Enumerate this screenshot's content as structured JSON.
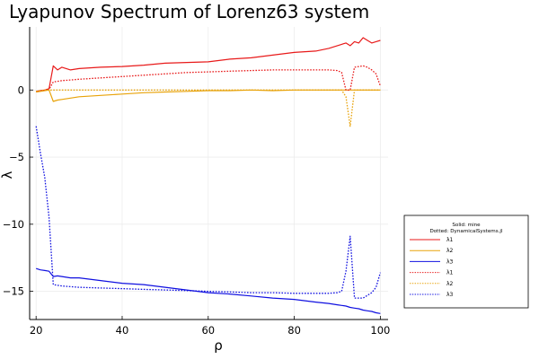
{
  "chart_data": {
    "type": "line",
    "title": "Lyapunov Spectrum of Lorenz63 system",
    "xlabel": "ρ",
    "ylabel": "λ",
    "xlim": [
      18.5,
      101.8
    ],
    "ylim": [
      -17.1,
      4.7
    ],
    "xticks": [
      20,
      40,
      60,
      80,
      100
    ],
    "yticks": [
      0,
      -5,
      -10,
      -15
    ],
    "ytick_labels": [
      "0",
      "−5",
      "−10",
      "−15"
    ],
    "grid": true,
    "legend": {
      "placement": "outer-right",
      "header_lines": [
        "Solid: mine",
        "Dotted: DynamicalSystems.jl"
      ]
    },
    "x": [
      20,
      21,
      22,
      23,
      24,
      25,
      26,
      28,
      30,
      35,
      40,
      45,
      50,
      55,
      60,
      65,
      70,
      75,
      80,
      85,
      88,
      90,
      91,
      92,
      93,
      94,
      95,
      96,
      97,
      98,
      99,
      100
    ],
    "series": [
      {
        "name": "λ1",
        "style": "solid",
        "color": "#e81a1a",
        "values": [
          -0.1,
          -0.05,
          0.0,
          0.1,
          1.8,
          1.5,
          1.7,
          1.5,
          1.6,
          1.7,
          1.75,
          1.85,
          2.0,
          2.05,
          2.1,
          2.3,
          2.4,
          2.6,
          2.8,
          2.9,
          3.1,
          3.3,
          3.4,
          3.5,
          3.3,
          3.6,
          3.5,
          3.9,
          3.7,
          3.5,
          3.6,
          3.7
        ]
      },
      {
        "name": "λ2",
        "style": "solid",
        "color": "#e8a30a",
        "values": [
          -0.15,
          -0.1,
          -0.05,
          0.0,
          -0.85,
          -0.75,
          -0.7,
          -0.6,
          -0.5,
          -0.4,
          -0.3,
          -0.2,
          -0.15,
          -0.1,
          -0.05,
          -0.05,
          0.0,
          -0.05,
          0.0,
          0.0,
          0.0,
          0.0,
          0.0,
          0.0,
          0.0,
          0.0,
          0.0,
          0.0,
          0.0,
          0.0,
          0.0,
          0.0
        ]
      },
      {
        "name": "λ3",
        "style": "solid",
        "color": "#1010e0",
        "values": [
          -13.3,
          -13.4,
          -13.45,
          -13.5,
          -13.9,
          -13.85,
          -13.9,
          -14.0,
          -14.0,
          -14.2,
          -14.4,
          -14.5,
          -14.7,
          -14.9,
          -15.1,
          -15.2,
          -15.35,
          -15.5,
          -15.6,
          -15.8,
          -15.9,
          -16.0,
          -16.05,
          -16.1,
          -16.2,
          -16.25,
          -16.3,
          -16.4,
          -16.45,
          -16.5,
          -16.6,
          -16.65
        ]
      },
      {
        "name": "λ1",
        "style": "dotted",
        "color": "#e81a1a",
        "values": [
          -0.1,
          -0.05,
          0.0,
          0.05,
          0.6,
          0.65,
          0.7,
          0.75,
          0.8,
          0.9,
          1.0,
          1.1,
          1.2,
          1.3,
          1.35,
          1.4,
          1.45,
          1.5,
          1.5,
          1.5,
          1.5,
          1.45,
          1.3,
          0.0,
          0.0,
          1.7,
          1.75,
          1.8,
          1.7,
          1.5,
          1.2,
          0.3
        ]
      },
      {
        "name": "λ2",
        "style": "dotted",
        "color": "#e8a30a",
        "values": [
          -0.1,
          -0.05,
          0.0,
          0.0,
          0.0,
          0.0,
          0.0,
          0.0,
          0.0,
          0.0,
          0.0,
          0.0,
          0.0,
          0.0,
          0.0,
          0.0,
          0.0,
          0.0,
          0.0,
          0.0,
          0.0,
          0.0,
          0.0,
          -0.5,
          -2.7,
          0.0,
          0.0,
          0.0,
          0.0,
          0.0,
          0.0,
          0.0
        ]
      },
      {
        "name": "λ3",
        "style": "dotted",
        "color": "#1010e0",
        "values": [
          -2.7,
          -4.7,
          -6.5,
          -9.5,
          -14.5,
          -14.55,
          -14.6,
          -14.65,
          -14.7,
          -14.75,
          -14.8,
          -14.85,
          -14.9,
          -14.95,
          -15.0,
          -15.05,
          -15.1,
          -15.1,
          -15.15,
          -15.15,
          -15.15,
          -15.1,
          -15.0,
          -13.5,
          -10.9,
          -15.5,
          -15.5,
          -15.5,
          -15.3,
          -15.1,
          -14.7,
          -13.6
        ]
      }
    ]
  }
}
